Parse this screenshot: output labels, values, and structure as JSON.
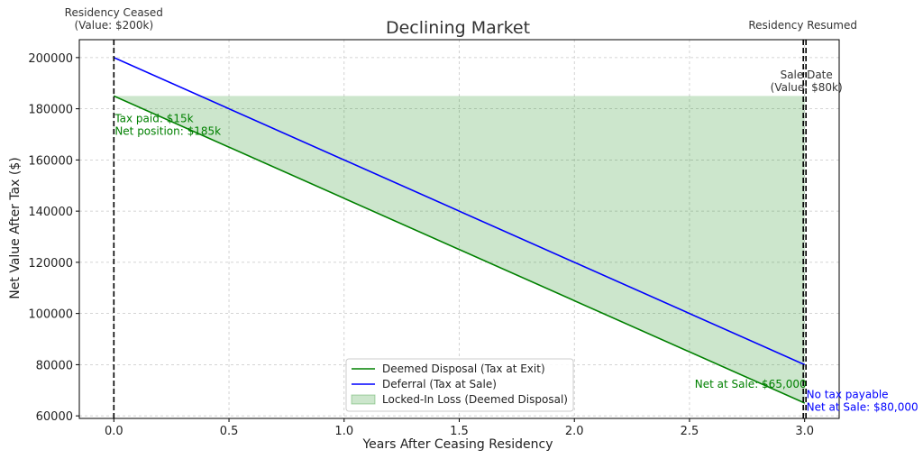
{
  "chart_data": {
    "type": "line",
    "title": "Declining Market",
    "xlabel": "Years After Ceasing Residency",
    "ylabel": "Net Value After Tax ($)",
    "xlim": [
      -0.15,
      3.15
    ],
    "ylim": [
      59000,
      207000
    ],
    "x_ticks": [
      0.0,
      0.5,
      1.0,
      1.5,
      2.0,
      2.5,
      3.0
    ],
    "x_tick_labels": [
      "0.0",
      "0.5",
      "1.0",
      "1.5",
      "2.0",
      "2.5",
      "3.0"
    ],
    "y_ticks": [
      60000,
      80000,
      100000,
      120000,
      140000,
      160000,
      180000,
      200000
    ],
    "y_tick_labels": [
      "60000",
      "80000",
      "100000",
      "120000",
      "140000",
      "160000",
      "180000",
      "200000"
    ],
    "grid": true,
    "legend_position": "lower-center",
    "series": [
      {
        "name": "Deemed Disposal (Tax at Exit)",
        "color": "#008000",
        "x": [
          0,
          3
        ],
        "y": [
          185000,
          65000
        ]
      },
      {
        "name": "Deferral (Tax at Sale)",
        "color": "#0000ff",
        "x": [
          0,
          3
        ],
        "y": [
          200000,
          80000
        ]
      }
    ],
    "fill": {
      "name": "Locked-In Loss (Deemed Disposal)",
      "color": "#008000",
      "opacity": 0.2,
      "x": [
        0,
        3
      ],
      "upper": [
        185000,
        185000
      ],
      "lower": [
        185000,
        65000
      ]
    },
    "vlines": [
      {
        "x": 0,
        "label_lines": [
          "Residency Ceased",
          "(Value: $200k)"
        ]
      },
      {
        "x": 3.0,
        "label_lines": [
          "Residency Resumed"
        ]
      },
      {
        "x": 3.0,
        "label_lines": [
          "Sale Date",
          "(Value: $80k)"
        ]
      }
    ],
    "annotations": [
      {
        "x": 0,
        "y": 185000,
        "color": "#008000",
        "lines": [
          "Tax paid: $15k",
          "Net position: $185k"
        ]
      },
      {
        "x": 3,
        "y": 65000,
        "color": "#008000",
        "lines": [
          "Net at Sale: $65,000"
        ]
      },
      {
        "x": 3,
        "y": 80000,
        "color": "#0000ff",
        "lines": [
          "No tax payable",
          "Net at Sale: $80,000"
        ]
      }
    ]
  }
}
